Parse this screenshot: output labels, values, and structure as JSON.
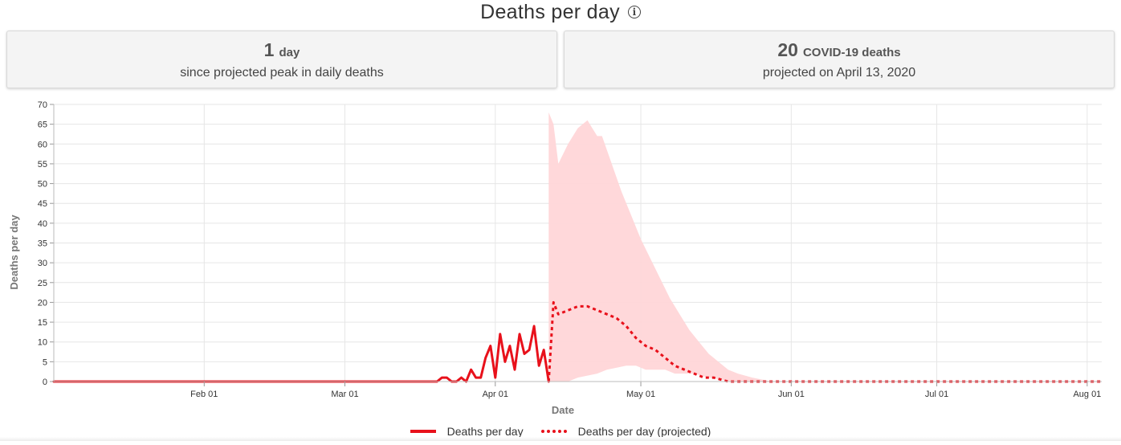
{
  "header": {
    "title": "Deaths per day",
    "info_icon": "info-circle-icon"
  },
  "cards": [
    {
      "number": "1",
      "unit": "day",
      "subtitle": "since projected peak in daily deaths"
    },
    {
      "number": "20",
      "unit": "COVID-19 deaths",
      "subtitle": "projected on April 13, 2020"
    }
  ],
  "legend": {
    "actual_label": "Deaths per day",
    "projected_label": "Deaths per day (projected)"
  },
  "colors": {
    "line": "#e8111b",
    "band": "#ffd6d8",
    "grid": "#e6e6e6"
  },
  "chart_data": {
    "type": "line",
    "xlabel": "Date",
    "ylabel": "Deaths per day",
    "x_range": [
      "2020-01-01",
      "2020-08-04"
    ],
    "ylim": [
      0,
      70
    ],
    "y_ticks": [
      0,
      5,
      10,
      15,
      20,
      25,
      30,
      35,
      40,
      45,
      50,
      55,
      60,
      65,
      70
    ],
    "x_ticks": [
      {
        "date": "2020-02-01",
        "label": "Feb 01"
      },
      {
        "date": "2020-03-01",
        "label": "Mar 01"
      },
      {
        "date": "2020-04-01",
        "label": "Apr 01"
      },
      {
        "date": "2020-05-01",
        "label": "May 01"
      },
      {
        "date": "2020-06-01",
        "label": "Jun 01"
      },
      {
        "date": "2020-07-01",
        "label": "Jul 01"
      },
      {
        "date": "2020-08-01",
        "label": "Aug 01"
      }
    ],
    "grid": true,
    "legend_position": "bottom",
    "series": [
      {
        "name": "Deaths per day",
        "style": "solid",
        "points": [
          [
            "2020-01-01",
            0
          ],
          [
            "2020-03-20",
            0
          ],
          [
            "2020-03-21",
            1
          ],
          [
            "2020-03-22",
            1
          ],
          [
            "2020-03-23",
            0
          ],
          [
            "2020-03-24",
            0
          ],
          [
            "2020-03-25",
            1
          ],
          [
            "2020-03-26",
            0
          ],
          [
            "2020-03-27",
            3
          ],
          [
            "2020-03-28",
            1
          ],
          [
            "2020-03-29",
            1
          ],
          [
            "2020-03-30",
            6
          ],
          [
            "2020-03-31",
            9
          ],
          [
            "2020-04-01",
            1
          ],
          [
            "2020-04-02",
            12
          ],
          [
            "2020-04-03",
            5
          ],
          [
            "2020-04-04",
            9
          ],
          [
            "2020-04-05",
            3
          ],
          [
            "2020-04-06",
            12
          ],
          [
            "2020-04-07",
            7
          ],
          [
            "2020-04-08",
            8
          ],
          [
            "2020-04-09",
            14
          ],
          [
            "2020-04-10",
            4
          ],
          [
            "2020-04-11",
            8
          ],
          [
            "2020-04-12",
            0
          ]
        ]
      },
      {
        "name": "Deaths per day (projected)",
        "style": "dotted",
        "points": [
          [
            "2020-04-12",
            0
          ],
          [
            "2020-04-13",
            20
          ],
          [
            "2020-04-14",
            17
          ],
          [
            "2020-04-16",
            18
          ],
          [
            "2020-04-18",
            19
          ],
          [
            "2020-04-20",
            19
          ],
          [
            "2020-04-22",
            18
          ],
          [
            "2020-04-24",
            17
          ],
          [
            "2020-04-26",
            16
          ],
          [
            "2020-04-28",
            14
          ],
          [
            "2020-04-30",
            11
          ],
          [
            "2020-05-02",
            9
          ],
          [
            "2020-05-04",
            8
          ],
          [
            "2020-05-06",
            6
          ],
          [
            "2020-05-08",
            4
          ],
          [
            "2020-05-10",
            3
          ],
          [
            "2020-05-12",
            2
          ],
          [
            "2020-05-14",
            1
          ],
          [
            "2020-05-16",
            1
          ],
          [
            "2020-05-19",
            0
          ],
          [
            "2020-08-04",
            0
          ]
        ]
      }
    ],
    "uncertainty_band": {
      "upper": [
        [
          "2020-04-12",
          68
        ],
        [
          "2020-04-13",
          65
        ],
        [
          "2020-04-14",
          55
        ],
        [
          "2020-04-16",
          60
        ],
        [
          "2020-04-18",
          64
        ],
        [
          "2020-04-19",
          65
        ],
        [
          "2020-04-20",
          66
        ],
        [
          "2020-04-21",
          64
        ],
        [
          "2020-04-22",
          62
        ],
        [
          "2020-04-23",
          62
        ],
        [
          "2020-04-25",
          55
        ],
        [
          "2020-04-27",
          48
        ],
        [
          "2020-04-29",
          42
        ],
        [
          "2020-05-01",
          36
        ],
        [
          "2020-05-03",
          31
        ],
        [
          "2020-05-05",
          26
        ],
        [
          "2020-05-07",
          21
        ],
        [
          "2020-05-09",
          17
        ],
        [
          "2020-05-11",
          13
        ],
        [
          "2020-05-13",
          10
        ],
        [
          "2020-05-15",
          7
        ],
        [
          "2020-05-17",
          5
        ],
        [
          "2020-05-19",
          3
        ],
        [
          "2020-05-21",
          2
        ],
        [
          "2020-05-24",
          1
        ],
        [
          "2020-05-28",
          0
        ]
      ],
      "lower": [
        [
          "2020-04-12",
          0
        ],
        [
          "2020-04-16",
          0
        ],
        [
          "2020-04-18",
          1
        ],
        [
          "2020-04-22",
          2
        ],
        [
          "2020-04-24",
          3
        ],
        [
          "2020-04-28",
          4
        ],
        [
          "2020-04-30",
          4
        ],
        [
          "2020-05-02",
          3
        ],
        [
          "2020-05-06",
          3
        ],
        [
          "2020-05-08",
          2
        ],
        [
          "2020-05-12",
          2
        ],
        [
          "2020-05-15",
          1
        ],
        [
          "2020-05-20",
          0
        ],
        [
          "2020-05-28",
          0
        ]
      ]
    }
  }
}
